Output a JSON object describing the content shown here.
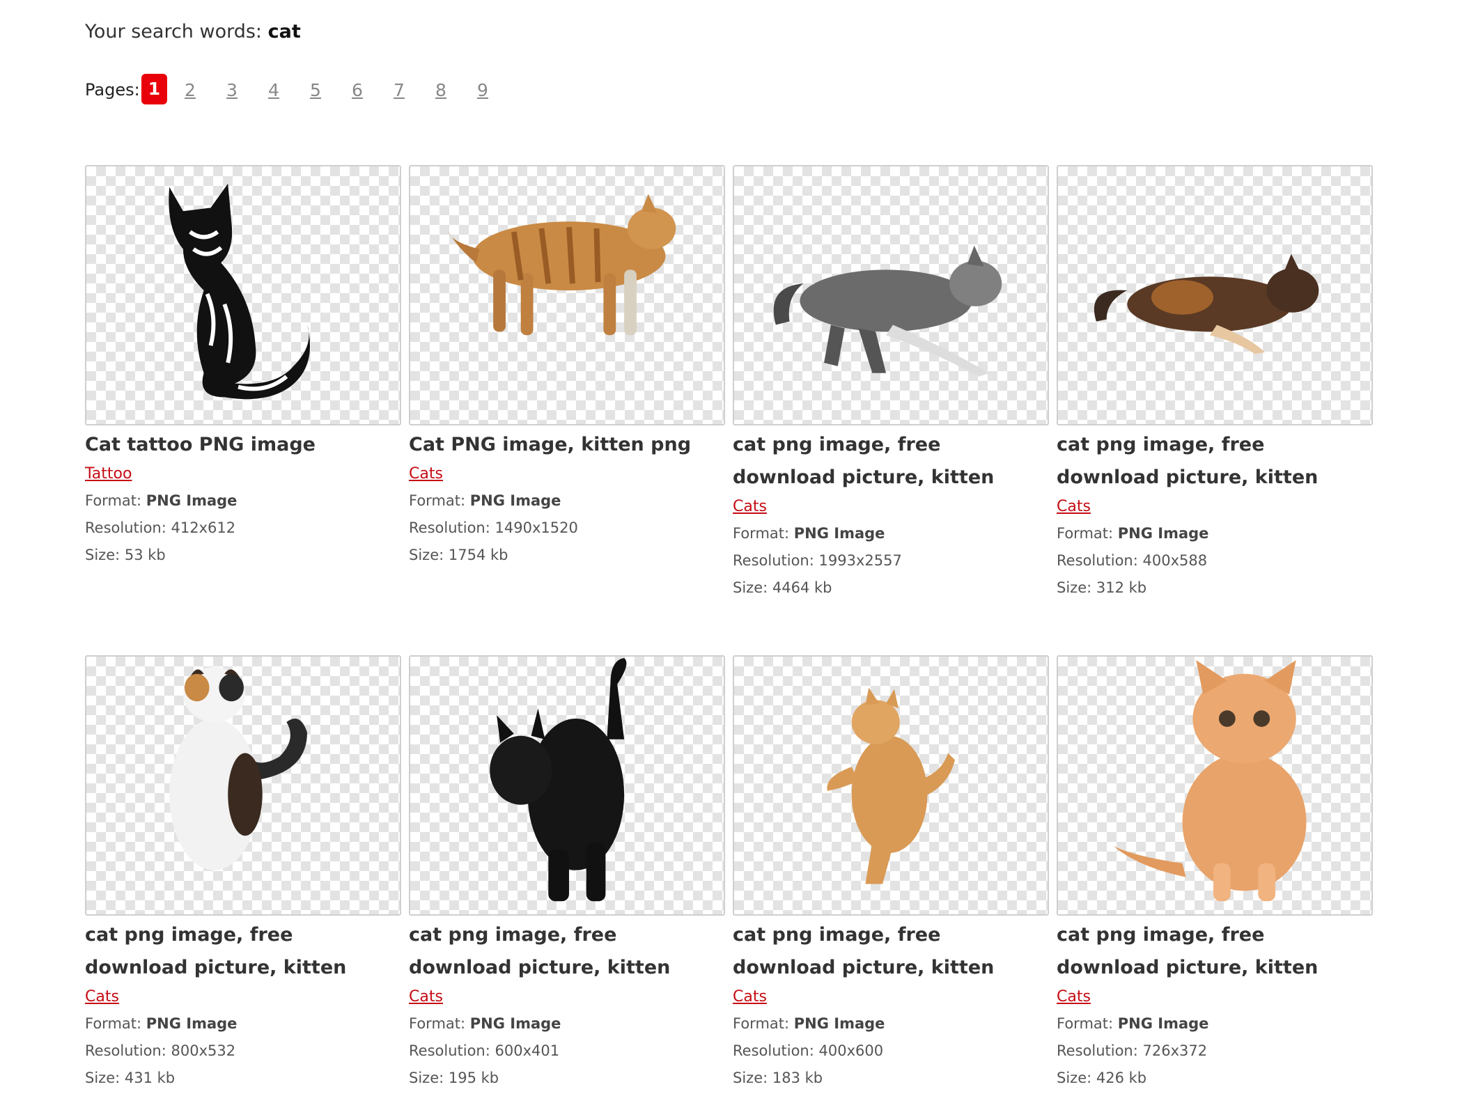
{
  "search": {
    "prefix": "Your search words:",
    "query": "cat"
  },
  "pagination": {
    "label": "Pages:",
    "current": "1",
    "pages": [
      "2",
      "3",
      "4",
      "5",
      "6",
      "7",
      "8",
      "9"
    ]
  },
  "labels": {
    "format": "Format:",
    "resolution": "Resolution:",
    "size": "Size:"
  },
  "results": [
    {
      "title": "Cat tattoo PNG image",
      "category": "Tattoo",
      "format": "PNG Image",
      "resolution": "412x612",
      "size": "53 kb"
    },
    {
      "title": "Cat PNG image, kitten png",
      "category": "Cats",
      "format": "PNG Image",
      "resolution": "1490x1520",
      "size": "1754 kb"
    },
    {
      "title": "cat png image, free download picture, kitten",
      "category": "Cats",
      "format": "PNG Image",
      "resolution": "1993x2557",
      "size": "4464 kb"
    },
    {
      "title": "cat png image, free download picture, kitten",
      "category": "Cats",
      "format": "PNG Image",
      "resolution": "400x588",
      "size": "312 kb"
    },
    {
      "title": "cat png image, free download picture, kitten",
      "category": "Cats",
      "format": "PNG Image",
      "resolution": "800x532",
      "size": "431 kb"
    },
    {
      "title": "cat png image, free download picture, kitten",
      "category": "Cats",
      "format": "PNG Image",
      "resolution": "600x401",
      "size": "195 kb"
    },
    {
      "title": "cat png image, free download picture, kitten",
      "category": "Cats",
      "format": "PNG Image",
      "resolution": "400x600",
      "size": "183 kb"
    },
    {
      "title": "cat png image, free download picture, kitten",
      "category": "Cats",
      "format": "PNG Image",
      "resolution": "726x372",
      "size": "426 kb"
    }
  ]
}
